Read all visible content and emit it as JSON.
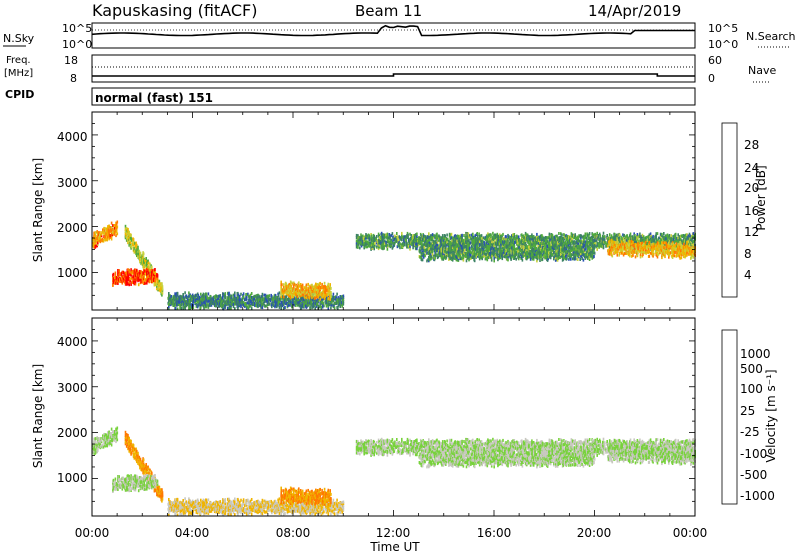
{
  "header": {
    "station": "Kapuskasing (fitACF)",
    "beam": "Beam 11",
    "date": "14/Apr/2019"
  },
  "noise_panel": {
    "left_label": "N.Sky",
    "right_label": "N.Search",
    "left_ticks": [
      "10^5",
      "10^0"
    ],
    "right_ticks": [
      "10^5",
      "10^0"
    ]
  },
  "freq_panel": {
    "left_label_line1": "Freq.",
    "left_label_line2": "[MHz]",
    "right_label": "Nave",
    "left_ticks": [
      "18",
      "8"
    ],
    "right_ticks": [
      "60",
      "0"
    ],
    "cpid_label": "CPID"
  },
  "mode_text": "normal (fast) 151",
  "power_panel": {
    "ylabel": "Slant Range [km]",
    "yticks": [
      "4000",
      "3000",
      "2000",
      "1000"
    ],
    "colorbar_label": "Power [dB]",
    "colorbar_ticks": [
      "28",
      "24",
      "20",
      "16",
      "12",
      "8",
      "4"
    ],
    "colors": [
      "#0000ff",
      "#2850b4",
      "#3c8264",
      "#50aa3c",
      "#c8d23c",
      "#f0b400",
      "#ff7800",
      "#ff0000"
    ]
  },
  "velocity_panel": {
    "ylabel": "Slant Range [km]",
    "yticks": [
      "4000",
      "3000",
      "2000",
      "1000"
    ],
    "colorbar_label": "Velocity [m s⁻¹]",
    "colorbar_ticks": [
      "1000",
      "500",
      "100",
      "25",
      "-25",
      "-100",
      "-500",
      "-1000"
    ],
    "colors": [
      "#1432c8",
      "#2878b4",
      "#3ca050",
      "#78d23c",
      "#c8c8c0",
      "#f0b400",
      "#ff7800",
      "#ff4000",
      "#ff0000"
    ]
  },
  "x_axis": {
    "ticks": [
      "00:00",
      "04:00",
      "08:00",
      "12:00",
      "16:00",
      "20:00",
      "00:00"
    ],
    "label": "Time UT"
  },
  "chart_data": {
    "type": "heatmap",
    "title": "Kapuskasing (fitACF) Beam 11 14/Apr/2019",
    "xlabel": "Time UT",
    "ylabel": "Slant Range [km]",
    "xlim": [
      0,
      24
    ],
    "ylim": [
      180,
      4500
    ],
    "power_range_db": [
      0,
      32
    ],
    "velocity_range_ms": [
      -1000,
      1000
    ],
    "scatter_bands": [
      {
        "t_start": 1.3,
        "t_end": 2.8,
        "r_start": 1900,
        "r_end": 600,
        "power_db": 18,
        "velocity": -100
      },
      {
        "t_start": 0.0,
        "t_end": 1.0,
        "r_start": 1700,
        "r_end": 2000,
        "power_db": 24,
        "velocity": 25
      },
      {
        "t_start": 0.8,
        "t_end": 2.6,
        "r_start": 900,
        "r_end": 950,
        "power_db": 28,
        "velocity": 25
      },
      {
        "t_start": 3.0,
        "t_end": 10.0,
        "r_start": 400,
        "r_end": 400,
        "power_db": 10,
        "velocity": -25
      },
      {
        "t_start": 7.5,
        "t_end": 9.5,
        "r_start": 650,
        "r_end": 600,
        "power_db": 22,
        "velocity": -100
      },
      {
        "t_start": 10.5,
        "t_end": 24.0,
        "r_start": 1700,
        "r_end": 1700,
        "power_db": 12,
        "velocity": 25
      },
      {
        "t_start": 13.0,
        "t_end": 20.0,
        "r_start": 1450,
        "r_end": 1450,
        "power_db": 12,
        "velocity": 25
      },
      {
        "t_start": 20.5,
        "t_end": 24.0,
        "r_start": 1550,
        "r_end": 1500,
        "power_db": 22,
        "velocity": 25
      }
    ]
  }
}
